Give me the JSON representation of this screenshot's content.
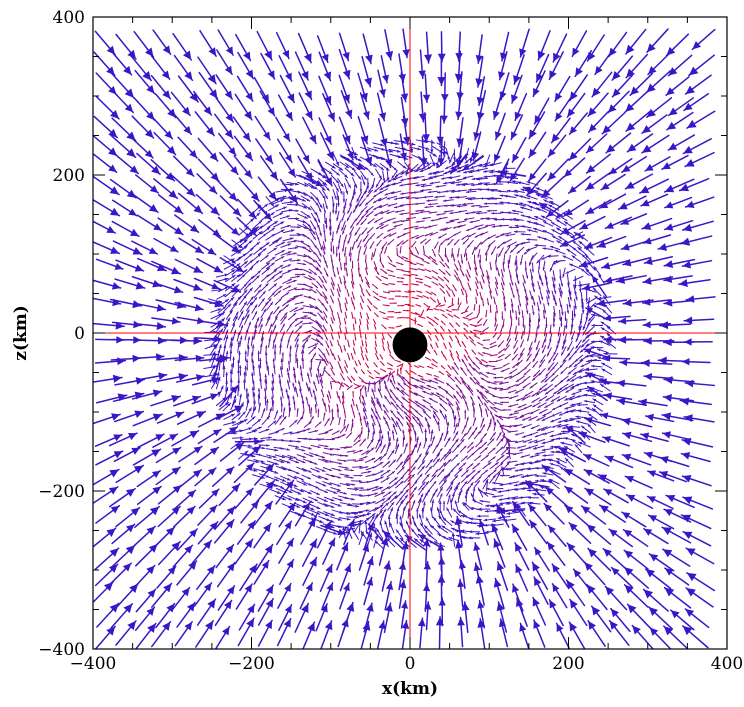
{
  "chart_data": {
    "type": "vector-field",
    "title": "",
    "xlabel": "x(km)",
    "ylabel": "z(km)",
    "xlim": [
      -400,
      400
    ],
    "ylim": [
      -400,
      400
    ],
    "x_ticks": [
      -400,
      -200,
      0,
      200,
      400
    ],
    "y_ticks": [
      -400,
      -200,
      0,
      200,
      400
    ],
    "x_tick_labels": [
      "−400",
      "−200",
      "0",
      "200",
      "400"
    ],
    "y_tick_labels": [
      "−400",
      "−200",
      "0",
      "200",
      "400"
    ],
    "grid": false,
    "legend": "none",
    "reference_lines": [
      {
        "orientation": "vertical",
        "x": 0,
        "color": "#ff0000"
      },
      {
        "orientation": "horizontal",
        "y": 0,
        "color": "#ff0000"
      }
    ],
    "central_object": {
      "x": 0,
      "z": -15,
      "radius_km": 22,
      "color": "#000000"
    },
    "flow_description": "infall toward the centre in outer region, turbulent swirling flow inside ~250 km",
    "color_scale": {
      "low_speed": "#e8002a",
      "mid": "#8a0f8f",
      "high_speed": "#3a16c8"
    }
  }
}
